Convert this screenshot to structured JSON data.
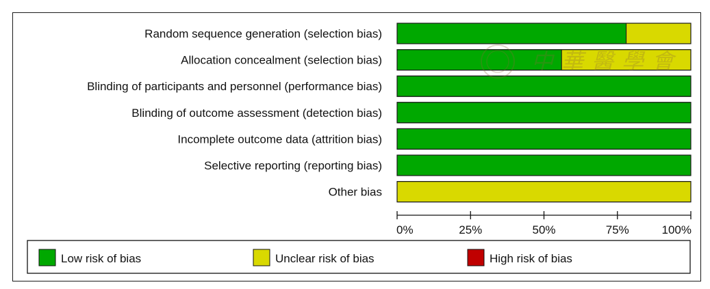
{
  "chart_data": {
    "type": "bar",
    "orientation": "horizontal",
    "stacked": true,
    "percent": true,
    "categories": [
      "Random sequence generation (selection bias)",
      "Allocation concealment (selection bias)",
      "Blinding of participants and personnel (performance bias)",
      "Blinding of outcome assessment (detection bias)",
      "Incomplete outcome data (attrition bias)",
      "Selective reporting (reporting bias)",
      "Other bias"
    ],
    "series": [
      {
        "name": "Low risk of bias",
        "color": "#00a800",
        "values": [
          78,
          56,
          100,
          100,
          100,
          100,
          0
        ]
      },
      {
        "name": "Unclear risk of bias",
        "color": "#d9d900",
        "values": [
          22,
          44,
          0,
          0,
          0,
          0,
          100
        ]
      },
      {
        "name": "High risk of bias",
        "color": "#c00000",
        "values": [
          0,
          0,
          0,
          0,
          0,
          0,
          0
        ]
      }
    ],
    "x_ticks": [
      "0%",
      "25%",
      "50%",
      "75%",
      "100%"
    ],
    "xlim": [
      0,
      100
    ],
    "legend_position": "bottom",
    "grid": false,
    "watermark": "中華醫學會"
  }
}
